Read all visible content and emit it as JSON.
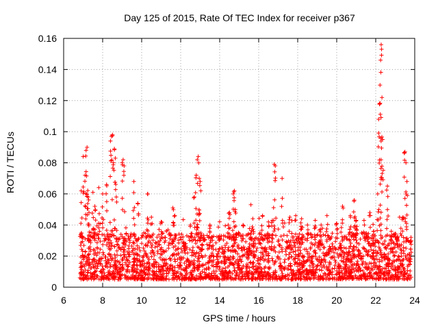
{
  "chart_data": {
    "type": "scatter",
    "title": "Day 125 of 2015, Rate Of TEC Index for receiver p367",
    "xlabel": "GPS time / hours",
    "ylabel": "ROTI / TECUs",
    "xlim": [
      6,
      24
    ],
    "ylim": [
      0,
      0.16
    ],
    "x_ticks": [
      "6",
      "8",
      "10",
      "12",
      "14",
      "16",
      "18",
      "20",
      "22",
      "24"
    ],
    "y_ticks": [
      "0",
      "0.02",
      "0.04",
      "0.06",
      "0.08",
      "0.1",
      "0.12",
      "0.14",
      "0.16"
    ],
    "grid": true,
    "marker": "+",
    "marker_color": "#ff0000",
    "series": [
      {
        "name": "ROTI",
        "note": "dense band of points between ~0.005 and ~0.03 TECU from 6.8 h to 23.8 h, plus the spikes listed",
        "x": [
          6.9,
          7.0,
          7.1,
          7.15,
          7.2,
          7.25,
          7.3,
          7.5,
          7.6,
          7.8,
          8.0,
          8.2,
          8.4,
          8.45,
          8.5,
          8.55,
          8.6,
          8.65,
          8.7,
          9.0,
          9.05,
          9.1,
          9.6,
          9.8,
          10.3,
          10.5,
          11.0,
          11.6,
          11.7,
          12.5,
          12.7,
          12.8,
          12.85,
          12.9,
          12.95,
          13.0,
          13.5,
          14.0,
          14.5,
          14.7,
          14.75,
          14.8,
          15.2,
          15.6,
          15.7,
          16.2,
          16.5,
          16.7,
          16.8,
          16.85,
          17.2,
          17.6,
          17.9,
          18.2,
          18.5,
          18.9,
          19.2,
          19.5,
          20.0,
          20.3,
          20.7,
          20.9,
          21.0,
          21.4,
          21.7,
          21.9,
          22.1,
          22.15,
          22.2,
          22.22,
          22.25,
          22.28,
          22.3,
          22.32,
          22.35,
          22.6,
          22.8,
          23.1,
          23.4,
          23.5,
          23.55,
          23.6,
          23.8
        ],
        "y": [
          0.062,
          0.084,
          0.072,
          0.088,
          0.09,
          0.058,
          0.048,
          0.061,
          0.052,
          0.064,
          0.06,
          0.066,
          0.094,
          0.097,
          0.098,
          0.08,
          0.089,
          0.083,
          0.058,
          0.08,
          0.082,
          0.078,
          0.068,
          0.054,
          0.06,
          0.045,
          0.042,
          0.051,
          0.046,
          0.04,
          0.058,
          0.072,
          0.082,
          0.084,
          0.07,
          0.068,
          0.04,
          0.033,
          0.048,
          0.06,
          0.062,
          0.05,
          0.04,
          0.053,
          0.044,
          0.046,
          0.042,
          0.043,
          0.079,
          0.078,
          0.07,
          0.045,
          0.046,
          0.044,
          0.04,
          0.043,
          0.04,
          0.046,
          0.041,
          0.052,
          0.046,
          0.056,
          0.043,
          0.043,
          0.048,
          0.036,
          0.06,
          0.108,
          0.118,
          0.13,
          0.146,
          0.156,
          0.153,
          0.122,
          0.095,
          0.065,
          0.036,
          0.032,
          0.045,
          0.087,
          0.08,
          0.068,
          0.02
        ]
      }
    ]
  }
}
